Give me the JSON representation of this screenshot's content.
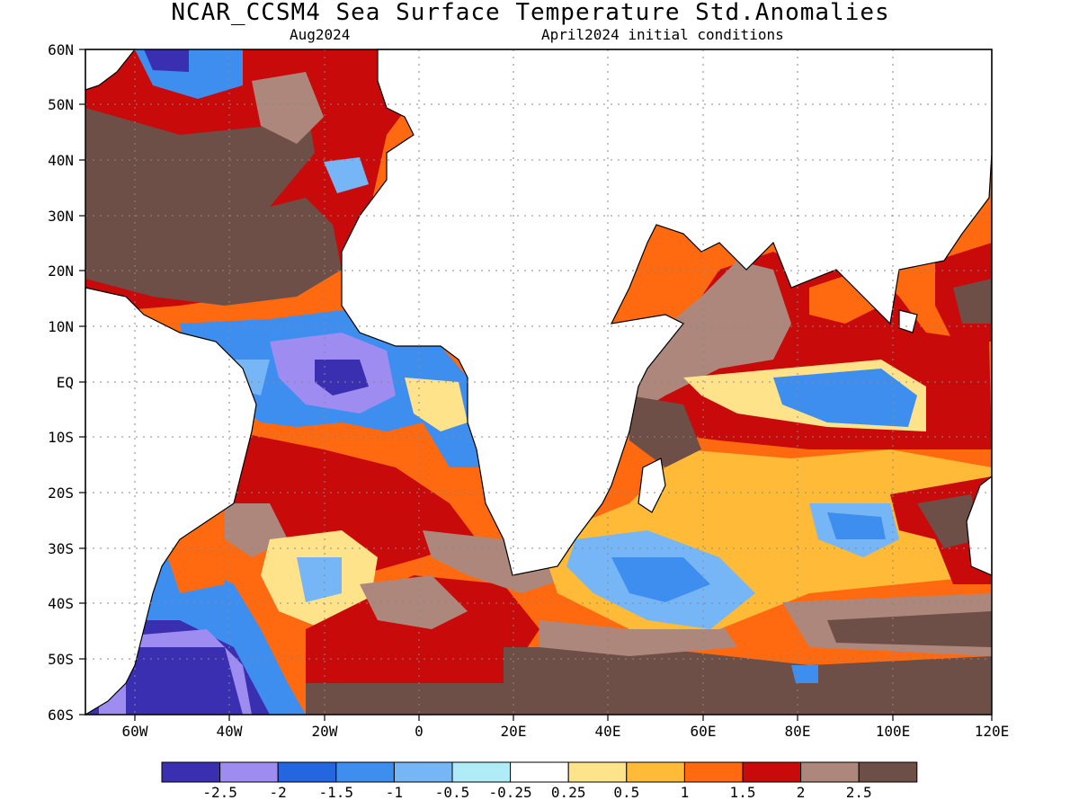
{
  "title": "NCAR_CCSM4 Sea Surface Temperature Std.Anomalies",
  "subtitle_left": "Aug2024",
  "subtitle_right": "April2024 initial conditions",
  "lat_labels": [
    "60N",
    "50N",
    "40N",
    "30N",
    "20N",
    "10N",
    "EQ",
    "10S",
    "20S",
    "30S",
    "40S",
    "50S",
    "60S"
  ],
  "lon_labels": [
    "60W",
    "40W",
    "20W",
    "0",
    "20E",
    "40E",
    "60E",
    "80E",
    "100E",
    "120E"
  ],
  "colorbar": {
    "colors": [
      "#3a2fb0",
      "#9f8cf0",
      "#2466e0",
      "#3e8ef0",
      "#76b6f6",
      "#b0ecf8",
      "#ffffff",
      "#ffe38a",
      "#ffbb38",
      "#ff6a10",
      "#c80a0a",
      "#ad877c",
      "#6e4f47"
    ],
    "labels": [
      "-2.5",
      "-2",
      "-1.5",
      "-1",
      "-0.5",
      "-0.25",
      "0.25",
      "0.5",
      "1",
      "1.5",
      "2",
      "2.5"
    ]
  }
}
